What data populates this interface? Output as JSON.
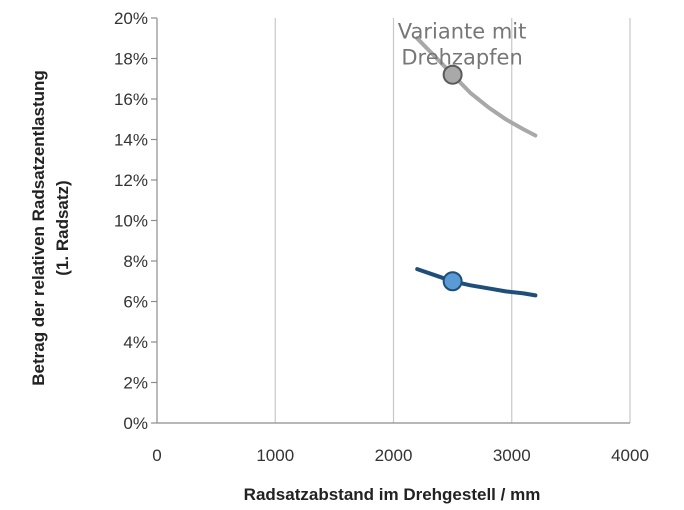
{
  "chart_data": {
    "type": "line",
    "title": "",
    "xlabel": "Radsatzabstand  im Drehgestell / mm",
    "ylabel_line1": "Betrag der relativen Radsatzentlastung",
    "ylabel_line2": "(1. Radsatz)",
    "xlim": [
      0,
      4000
    ],
    "ylim": [
      0,
      0.2
    ],
    "x_ticks": [
      0,
      1000,
      2000,
      3000,
      4000
    ],
    "x_tick_labels": [
      "0",
      "1000",
      "2000",
      "3000",
      "4000"
    ],
    "y_ticks": [
      0,
      0.02,
      0.04,
      0.06,
      0.08,
      0.1,
      0.12,
      0.14,
      0.16,
      0.18,
      0.2
    ],
    "y_tick_labels": [
      "0%",
      "2%",
      "4%",
      "6%",
      "8%",
      "10%",
      "12%",
      "14%",
      "16%",
      "18%",
      "20%"
    ],
    "grid": {
      "vertical": true,
      "horizontal": false
    },
    "series": [
      {
        "color": "#a8a8a8",
        "x": [
          2200,
          2350,
          2500,
          2650,
          2800,
          2950,
          3100,
          3200
        ],
        "y": [
          0.19,
          0.181,
          0.172,
          0.163,
          0.156,
          0.15,
          0.145,
          0.142
        ],
        "marker": {
          "x": 2500,
          "y": 0.172,
          "fill": "#a9a9a9",
          "stroke": "#5a5a5a"
        }
      },
      {
        "color": "#1f4e79",
        "x": [
          2200,
          2350,
          2500,
          2650,
          2800,
          2950,
          3100,
          3200
        ],
        "y": [
          0.076,
          0.073,
          0.07,
          0.068,
          0.0665,
          0.065,
          0.064,
          0.063
        ],
        "marker": {
          "x": 2500,
          "y": 0.07,
          "fill": "#5b9bd5",
          "stroke": "#1f4e79"
        }
      }
    ],
    "annotations": [
      {
        "line1": "Variante mit",
        "line2": "Drehzapfen",
        "anchor_x": 2580,
        "anchor_y": 0.187
      }
    ]
  }
}
